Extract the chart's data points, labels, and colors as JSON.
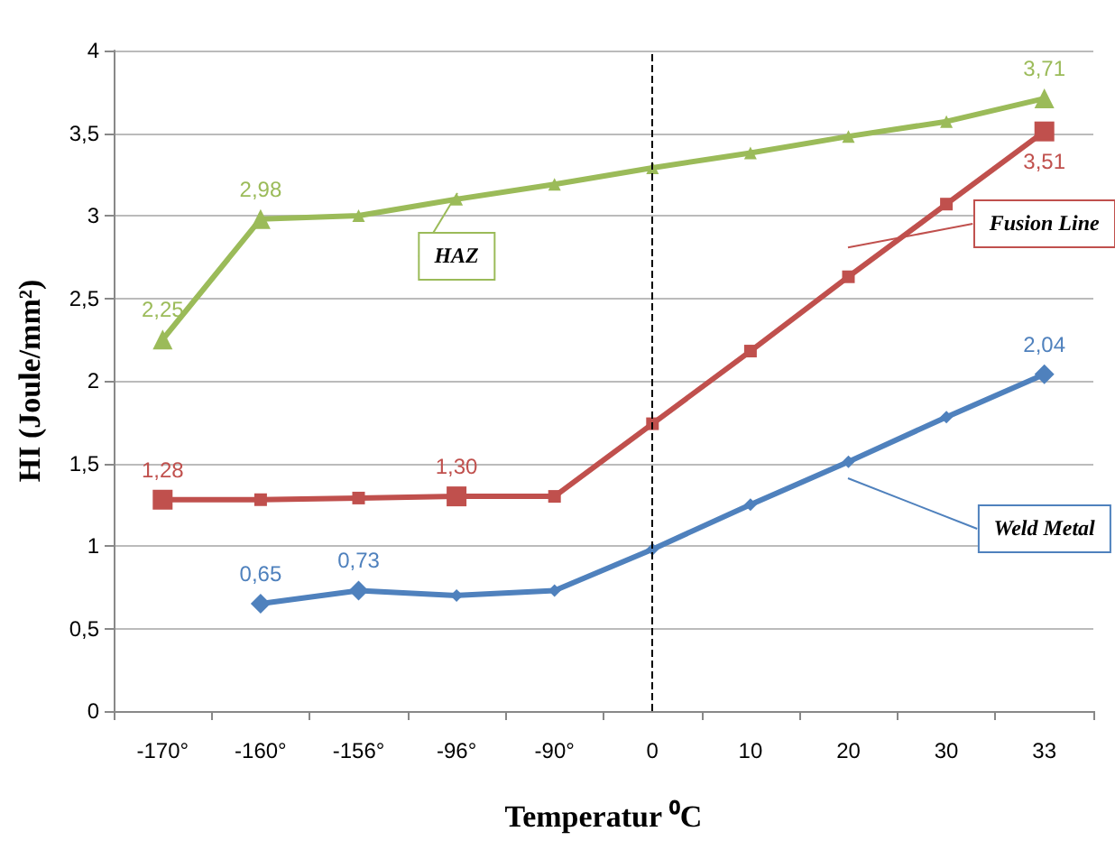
{
  "chart_data": {
    "type": "line",
    "xlabel": "Temperatur ⁰C",
    "ylabel": "HI (Joule/mm²)",
    "categories": [
      "-170°",
      "-160°",
      "-156°",
      "-96°",
      "-90°",
      "0",
      "10",
      "20",
      "30",
      "33"
    ],
    "series": [
      {
        "name": "HAZ",
        "color": "#9bbb59",
        "marker": "triangle",
        "values": [
          2.25,
          2.98,
          3.0,
          3.1,
          3.19,
          3.29,
          3.38,
          3.48,
          3.57,
          3.71
        ],
        "value_labels": [
          "2,25",
          "2,98",
          null,
          null,
          null,
          null,
          null,
          null,
          null,
          "3,71"
        ]
      },
      {
        "name": "Fusion Line",
        "color": "#c0504d",
        "marker": "square",
        "values": [
          1.28,
          1.28,
          1.29,
          1.3,
          1.3,
          1.74,
          2.18,
          2.63,
          3.07,
          3.51
        ],
        "value_labels": [
          "1,28",
          null,
          null,
          "1,30",
          null,
          null,
          null,
          null,
          null,
          "3,51"
        ]
      },
      {
        "name": "Weld Metal",
        "color": "#4f81bd",
        "marker": "diamond",
        "values": [
          null,
          0.65,
          0.73,
          0.7,
          0.73,
          0.98,
          1.25,
          1.51,
          1.78,
          2.04
        ],
        "value_labels": [
          null,
          "0,65",
          "0,73",
          null,
          null,
          null,
          null,
          null,
          null,
          "2,04"
        ]
      }
    ],
    "ylim": [
      0,
      4
    ],
    "yticks": [
      0,
      {
        "value": 0.5,
        "label": "0,5"
      },
      1,
      {
        "value": 1.5,
        "label": "1,5"
      },
      2,
      {
        "value": 2.5,
        "label": "2,5"
      },
      3,
      {
        "value": 3.5,
        "label": "3,5"
      },
      4
    ],
    "grid": "y",
    "legend": false,
    "line_style": "solid",
    "ref_lines": [
      {
        "axis": "x",
        "value": "0",
        "color": "#000000",
        "line_style": "dashed"
      }
    ]
  }
}
